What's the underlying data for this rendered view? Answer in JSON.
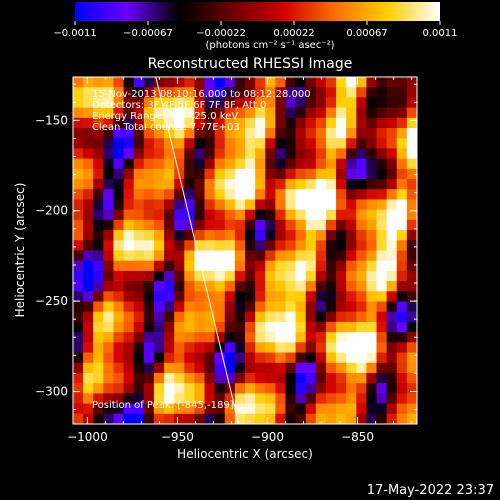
{
  "chart_data": {
    "type": "heatmap",
    "title": "Reconstructed RHESSI Image",
    "xlabel": "Heliocentric X (arcsec)",
    "ylabel": "Heliocentric Y (arcsec)",
    "xlim": [
      -1008,
      -817
    ],
    "ylim": [
      -318,
      -126
    ],
    "x_ticks": [
      -1000,
      -950,
      -900,
      -850
    ],
    "y_ticks": [
      -150,
      -200,
      -250,
      -300
    ],
    "x_tick_labels": [
      "−1000",
      "−950",
      "−900",
      "−850"
    ],
    "y_tick_labels": [
      "−150",
      "−200",
      "−250",
      "−300"
    ],
    "colorbar": {
      "range": [
        -0.0011,
        0.0011
      ],
      "tick_labels": [
        "−0.0011",
        "−0.00067",
        "−0.00022",
        "0.00022",
        "0.00067",
        "0.0011"
      ],
      "unit_label": "(photons cm⁻² s⁻¹ asec⁻²)",
      "colormap": [
        "#0000ff",
        "#6a00ff",
        "#000000",
        "#6b0000",
        "#d00000",
        "#ff7000",
        "#ffd000",
        "#ffffff"
      ]
    },
    "info_lines": [
      "15-Nov-2013 08:10:16.000 to 08:12:28.000",
      "Detectors: 3F 4F 5F 6F 7F 8F, Att 0",
      "Energy Range: 3.0 - 25.0 keV",
      "Clean     Total counts: 7.77E+03"
    ],
    "peak_text": "Position of Peak: [-845,-189]",
    "limb_line": {
      "points": [
        [
          -962,
          -126
        ],
        [
          -916,
          -318
        ]
      ]
    }
  },
  "footer": {
    "timestamp": "17-May-2022 23:37"
  }
}
